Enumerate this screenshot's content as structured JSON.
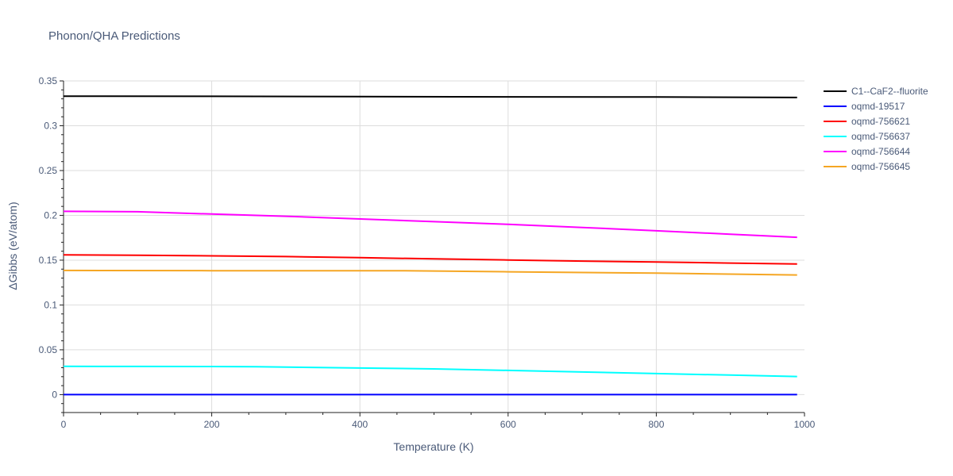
{
  "chart_data": {
    "type": "line",
    "title": "Phonon/QHA Predictions",
    "xlabel": "Temperature (K)",
    "ylabel": "ΔGibbs (eV/atom)",
    "xlim": [
      0,
      1000
    ],
    "ylim": [
      -0.02,
      0.35
    ],
    "xticks": [
      0,
      200,
      400,
      600,
      800,
      1000
    ],
    "xtick_labels": [
      "0",
      "200",
      "400",
      "600",
      "800",
      "1000"
    ],
    "yticks": [
      0,
      0.05,
      0.1,
      0.15,
      0.2,
      0.25,
      0.3,
      0.35
    ],
    "ytick_labels": [
      "0",
      "0.05",
      "0.1",
      "0.15",
      "0.2",
      "0.25",
      "0.3",
      "0.35"
    ],
    "grid": true,
    "legend_position": "top-right, outside plot",
    "series": [
      {
        "name": "C1--CaF2--fluorite",
        "color": "#000000",
        "x": [
          0,
          200,
          400,
          600,
          800,
          990
        ],
        "y": [
          0.333,
          0.3328,
          0.3325,
          0.3322,
          0.332,
          0.3315
        ]
      },
      {
        "name": "oqmd-19517",
        "color": "#0000ff",
        "x": [
          0,
          200,
          400,
          600,
          800,
          990
        ],
        "y": [
          0,
          0,
          0,
          0,
          0,
          0
        ]
      },
      {
        "name": "oqmd-756621",
        "color": "#ff0000",
        "x": [
          0,
          100,
          200,
          300,
          400,
          500,
          600,
          700,
          800,
          900,
          990
        ],
        "y": [
          0.156,
          0.1555,
          0.1548,
          0.154,
          0.1528,
          0.1515,
          0.1502,
          0.149,
          0.148,
          0.1468,
          0.1458
        ]
      },
      {
        "name": "oqmd-756637",
        "color": "#00ffff",
        "x": [
          0,
          100,
          200,
          260,
          400,
          500,
          600,
          700,
          800,
          900,
          990
        ],
        "y": [
          0.0315,
          0.0314,
          0.0313,
          0.0312,
          0.0297,
          0.0287,
          0.027,
          0.0252,
          0.0235,
          0.0218,
          0.0202
        ]
      },
      {
        "name": "oqmd-756644",
        "color": "#ff00ff",
        "x": [
          0,
          100,
          200,
          300,
          400,
          500,
          600,
          700,
          800,
          900,
          990
        ],
        "y": [
          0.2045,
          0.204,
          0.2015,
          0.199,
          0.196,
          0.193,
          0.19,
          0.1865,
          0.1828,
          0.179,
          0.1755
        ]
      },
      {
        "name": "oqmd-756645",
        "color": "#f5a623",
        "x": [
          0,
          200,
          400,
          460,
          600,
          800,
          990
        ],
        "y": [
          0.1385,
          0.1383,
          0.1383,
          0.1382,
          0.137,
          0.1355,
          0.1335
        ]
      }
    ]
  }
}
